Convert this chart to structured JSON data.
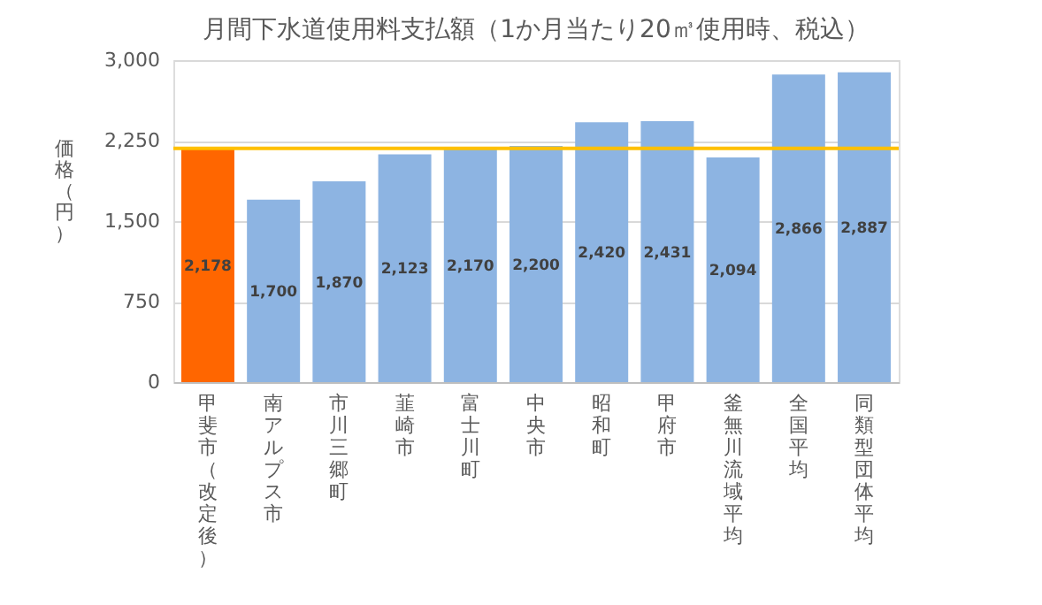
{
  "chart_data": {
    "type": "bar",
    "title": "月間下水道使用料支払額（1か月当たり20㎥使用時、税込）",
    "ylabel": "価格（円）",
    "categories": [
      "甲斐市（改定後）",
      "南アルプス市",
      "市川三郷町",
      "韮崎市",
      "富士川町",
      "中央市",
      "昭和町",
      "甲府市",
      "釜無川流域平均",
      "全国平均",
      "同類型団体平均"
    ],
    "values": [
      2178,
      1700,
      1870,
      2123,
      2170,
      2200,
      2420,
      2431,
      2094,
      2866,
      2887
    ],
    "colors": [
      "#ff6600",
      "#8db4e2",
      "#8db4e2",
      "#8db4e2",
      "#8db4e2",
      "#8db4e2",
      "#8db4e2",
      "#8db4e2",
      "#8db4e2",
      "#8db4e2",
      "#8db4e2"
    ],
    "ylim": [
      0,
      3000
    ],
    "yticks": [
      0,
      {
        "value": 750,
        "label": "750"
      },
      {
        "value": 1500,
        "label": "1,500"
      },
      {
        "value": 2250,
        "label": "2,250"
      },
      {
        "value": 3000,
        "label": "3,000"
      }
    ],
    "grid": "y",
    "value_labels": [
      "2,178",
      "1,700",
      "1,870",
      "2,123",
      "2,170",
      "2,200",
      "2,420",
      "2,431",
      "2,094",
      "2,866",
      "2,887"
    ],
    "ref_lines": [
      {
        "axis": "y",
        "value": 2178,
        "color": "#ffc000"
      }
    ]
  }
}
